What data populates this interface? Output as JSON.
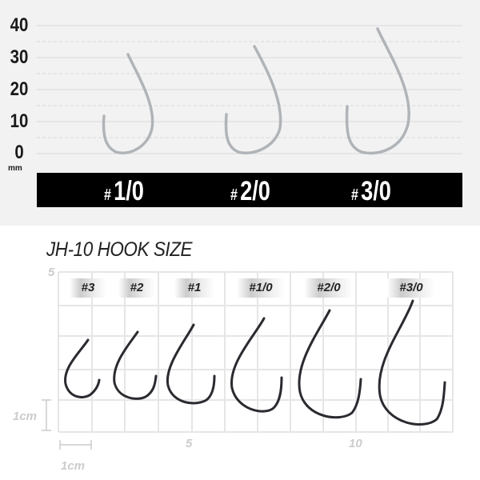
{
  "top_chart": {
    "y_ticks": [
      "40",
      "30",
      "20",
      "10",
      "0"
    ],
    "unit": "mm",
    "sizes": [
      {
        "hash": "#",
        "size": "1/0"
      },
      {
        "hash": "#",
        "size": "2/0"
      },
      {
        "hash": "#",
        "size": "3/0"
      }
    ],
    "colors": {
      "background": "#f2f2f2",
      "bar": "#000000",
      "hook": "#b8bcc0"
    }
  },
  "bottom_chart": {
    "title": "JH-10 HOOK SIZE",
    "corner_label": "5",
    "size_tags": [
      "#3",
      "#2",
      "#1",
      "#1/0",
      "#2/0",
      "#3/0"
    ],
    "x_labels": [
      "5",
      "10"
    ],
    "scale_vertical": "1cm",
    "scale_horizontal": "1cm",
    "colors": {
      "grid": "#e6e6e6",
      "hook": "#2a2a30"
    }
  }
}
